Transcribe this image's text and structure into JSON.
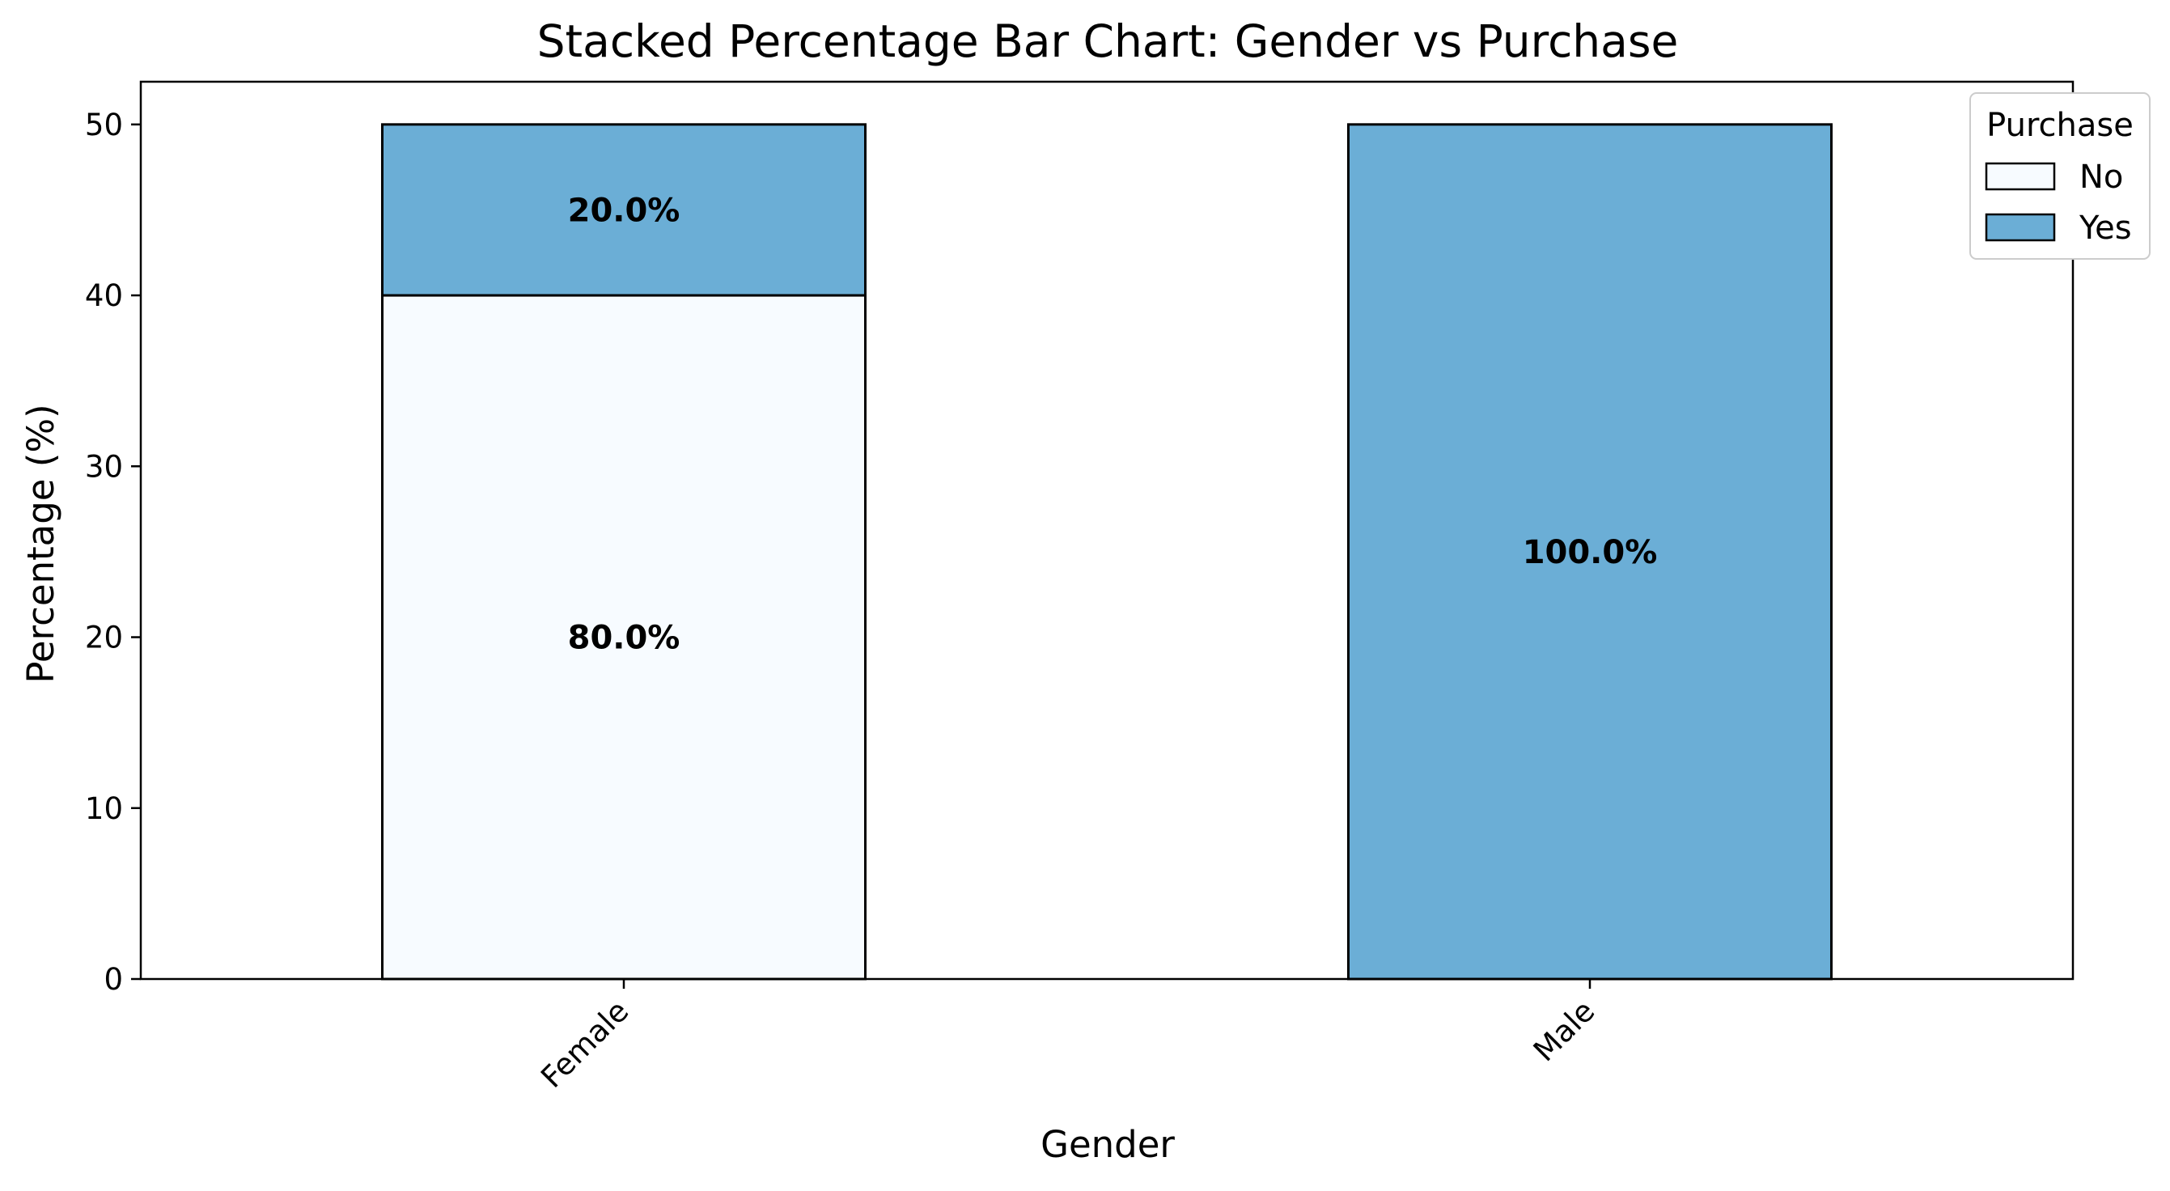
{
  "chart_data": {
    "type": "bar",
    "stacked": true,
    "title": "Stacked Percentage Bar Chart: Gender vs Purchase",
    "xlabel": "Gender",
    "ylabel": "Percentage (%)",
    "categories": [
      "Female",
      "Male"
    ],
    "series": [
      {
        "name": "No",
        "values": [
          40,
          0
        ],
        "labels": [
          "80.0%",
          ""
        ],
        "color": "#f7fbff"
      },
      {
        "name": "Yes",
        "values": [
          10,
          50
        ],
        "labels": [
          "20.0%",
          "100.0%"
        ],
        "color": "#6baed6"
      }
    ],
    "ylim": [
      0,
      52.5
    ],
    "yticks": [
      0,
      10,
      20,
      30,
      40,
      50
    ],
    "grid": false,
    "legend": {
      "title": "Purchase",
      "placement": "top-right",
      "entries": [
        "No",
        "Yes"
      ]
    }
  }
}
